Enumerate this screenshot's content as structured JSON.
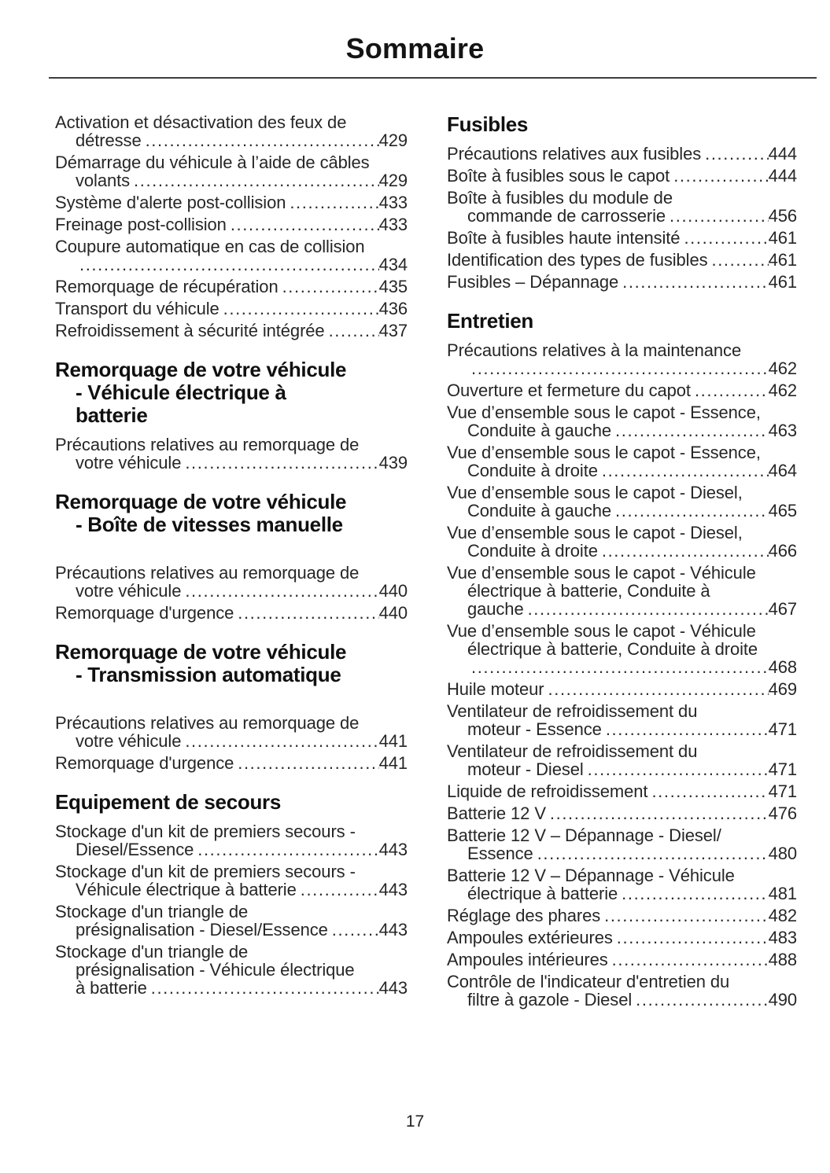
{
  "page": {
    "title": "Sommaire",
    "footer_page_number": "17"
  },
  "toc": {
    "columns": [
      {
        "blocks": [
          {
            "type": "entries",
            "items": [
              {
                "lines": [
                  {
                    "text": "Activation et désactivation des feux de"
                  },
                  {
                    "text": "détresse",
                    "page": "429",
                    "indent": true
                  }
                ]
              },
              {
                "lines": [
                  {
                    "text": "Démarrage du véhicule à l’aide de câbles"
                  },
                  {
                    "text": "volants",
                    "page": "429",
                    "indent": true
                  }
                ]
              },
              {
                "lines": [
                  {
                    "text": "Système d'alerte post-collision",
                    "page": "433"
                  }
                ]
              },
              {
                "lines": [
                  {
                    "text": "Freinage post-collision",
                    "page": "433"
                  }
                ]
              },
              {
                "lines": [
                  {
                    "text": "Coupure automatique en cas de collision"
                  },
                  {
                    "text": "",
                    "page": "434",
                    "indent": true
                  }
                ]
              },
              {
                "lines": [
                  {
                    "text": "Remorquage de récupération",
                    "page": "435"
                  }
                ]
              },
              {
                "lines": [
                  {
                    "text": "Transport du véhicule",
                    "page": "436"
                  }
                ]
              },
              {
                "lines": [
                  {
                    "text": "Refroidissement à sécurité intégrée",
                    "page": "437"
                  }
                ]
              }
            ]
          },
          {
            "type": "heading",
            "lines": [
              "Remorquage de votre véhicule",
              "- Véhicule électrique à",
              "batterie"
            ],
            "gap_after": false
          },
          {
            "type": "entries",
            "items": [
              {
                "lines": [
                  {
                    "text": "Précautions relatives au remorquage de"
                  },
                  {
                    "text": "votre véhicule",
                    "page": "439",
                    "indent": true
                  }
                ]
              }
            ]
          },
          {
            "type": "heading",
            "lines": [
              "Remorquage de votre véhicule",
              "- Boîte de vitesses manuelle"
            ],
            "gap_after": true
          },
          {
            "type": "entries",
            "items": [
              {
                "lines": [
                  {
                    "text": "Précautions relatives au remorquage de"
                  },
                  {
                    "text": "votre véhicule",
                    "page": "440",
                    "indent": true
                  }
                ]
              },
              {
                "lines": [
                  {
                    "text": "Remorquage d'urgence",
                    "page": "440"
                  }
                ]
              }
            ]
          },
          {
            "type": "heading",
            "lines": [
              "Remorquage de votre véhicule",
              "- Transmission automatique"
            ],
            "gap_after": true
          },
          {
            "type": "entries",
            "items": [
              {
                "lines": [
                  {
                    "text": "Précautions relatives au remorquage de"
                  },
                  {
                    "text": "votre véhicule",
                    "page": "441",
                    "indent": true
                  }
                ]
              },
              {
                "lines": [
                  {
                    "text": "Remorquage d'urgence",
                    "page": "441"
                  }
                ]
              }
            ]
          },
          {
            "type": "heading",
            "lines": [
              "Equipement de secours"
            ],
            "gap_after": false
          },
          {
            "type": "entries",
            "items": [
              {
                "lines": [
                  {
                    "text": "Stockage d'un kit de premiers secours -"
                  },
                  {
                    "text": "Diesel/Essence",
                    "page": "443",
                    "indent": true
                  }
                ]
              },
              {
                "lines": [
                  {
                    "text": "Stockage d'un kit de premiers secours -"
                  },
                  {
                    "text": "Véhicule électrique à batterie",
                    "page": "443",
                    "indent": true
                  }
                ]
              },
              {
                "lines": [
                  {
                    "text": "Stockage d'un triangle de"
                  },
                  {
                    "text": "présignalisation - Diesel/Essence",
                    "page": "443",
                    "indent": true
                  }
                ]
              },
              {
                "lines": [
                  {
                    "text": "Stockage d'un triangle de"
                  },
                  {
                    "text": "présignalisation - Véhicule électrique",
                    "indent": true
                  },
                  {
                    "text": "à batterie",
                    "page": "443",
                    "indent": true
                  }
                ]
              }
            ]
          }
        ]
      },
      {
        "blocks": [
          {
            "type": "heading",
            "lines": [
              "Fusibles"
            ],
            "gap_after": false
          },
          {
            "type": "entries",
            "items": [
              {
                "lines": [
                  {
                    "text": "Précautions relatives aux fusibles",
                    "page": "444"
                  }
                ]
              },
              {
                "lines": [
                  {
                    "text": "Boîte à fusibles sous le capot",
                    "page": "444"
                  }
                ]
              },
              {
                "lines": [
                  {
                    "text": "Boîte à fusibles du module de"
                  },
                  {
                    "text": "commande de carrosserie",
                    "page": "456",
                    "indent": true
                  }
                ]
              },
              {
                "lines": [
                  {
                    "text": "Boîte à fusibles haute intensité",
                    "page": "461"
                  }
                ]
              },
              {
                "lines": [
                  {
                    "text": "Identification des types de fusibles",
                    "page": "461"
                  }
                ]
              },
              {
                "lines": [
                  {
                    "text": "Fusibles – Dépannage",
                    "page": "461"
                  }
                ]
              }
            ]
          },
          {
            "type": "heading",
            "lines": [
              "Entretien"
            ],
            "gap_after": false
          },
          {
            "type": "entries",
            "items": [
              {
                "lines": [
                  {
                    "text": "Précautions relatives à la maintenance"
                  },
                  {
                    "text": "",
                    "page": "462",
                    "indent": true
                  }
                ]
              },
              {
                "lines": [
                  {
                    "text": "Ouverture et fermeture du capot",
                    "page": "462"
                  }
                ]
              },
              {
                "lines": [
                  {
                    "text": "Vue d’ensemble sous le capot - Essence,"
                  },
                  {
                    "text": "Conduite à gauche",
                    "page": "463",
                    "indent": true
                  }
                ]
              },
              {
                "lines": [
                  {
                    "text": "Vue d’ensemble sous le capot - Essence,"
                  },
                  {
                    "text": "Conduite à droite",
                    "page": "464",
                    "indent": true
                  }
                ]
              },
              {
                "lines": [
                  {
                    "text": "Vue d’ensemble sous le capot - Diesel,"
                  },
                  {
                    "text": "Conduite à gauche",
                    "page": "465",
                    "indent": true
                  }
                ]
              },
              {
                "lines": [
                  {
                    "text": "Vue d’ensemble sous le capot - Diesel,"
                  },
                  {
                    "text": "Conduite à droite",
                    "page": "466",
                    "indent": true
                  }
                ]
              },
              {
                "lines": [
                  {
                    "text": "Vue d’ensemble sous le capot - Véhicule"
                  },
                  {
                    "text": "électrique à batterie, Conduite à",
                    "indent": true
                  },
                  {
                    "text": "gauche",
                    "page": "467",
                    "indent": true
                  }
                ]
              },
              {
                "lines": [
                  {
                    "text": "Vue d’ensemble sous le capot - Véhicule"
                  },
                  {
                    "text": "électrique à batterie, Conduite à droite",
                    "indent": true
                  },
                  {
                    "text": "",
                    "page": "468",
                    "indent": true
                  }
                ]
              },
              {
                "lines": [
                  {
                    "text": "Huile moteur",
                    "page": "469"
                  }
                ]
              },
              {
                "lines": [
                  {
                    "text": "Ventilateur de refroidissement du"
                  },
                  {
                    "text": "moteur - Essence",
                    "page": "471",
                    "indent": true
                  }
                ]
              },
              {
                "lines": [
                  {
                    "text": "Ventilateur de refroidissement du"
                  },
                  {
                    "text": "moteur - Diesel",
                    "page": "471",
                    "indent": true
                  }
                ]
              },
              {
                "lines": [
                  {
                    "text": "Liquide de refroidissement",
                    "page": "471"
                  }
                ]
              },
              {
                "lines": [
                  {
                    "text": "Batterie 12 V",
                    "page": "476"
                  }
                ]
              },
              {
                "lines": [
                  {
                    "text": "Batterie 12 V – Dépannage - Diesel/"
                  },
                  {
                    "text": "Essence",
                    "page": "480",
                    "indent": true
                  }
                ]
              },
              {
                "lines": [
                  {
                    "text": "Batterie 12 V – Dépannage - Véhicule"
                  },
                  {
                    "text": "électrique à batterie",
                    "page": "481",
                    "indent": true
                  }
                ]
              },
              {
                "lines": [
                  {
                    "text": "Réglage des phares",
                    "page": "482"
                  }
                ]
              },
              {
                "lines": [
                  {
                    "text": "Ampoules extérieures",
                    "page": "483"
                  }
                ]
              },
              {
                "lines": [
                  {
                    "text": "Ampoules intérieures",
                    "page": "488"
                  }
                ]
              },
              {
                "lines": [
                  {
                    "text": "Contrôle de l'indicateur d'entretien du"
                  },
                  {
                    "text": "filtre à gazole - Diesel",
                    "page": "490",
                    "indent": true
                  }
                ]
              }
            ]
          }
        ]
      }
    ]
  }
}
